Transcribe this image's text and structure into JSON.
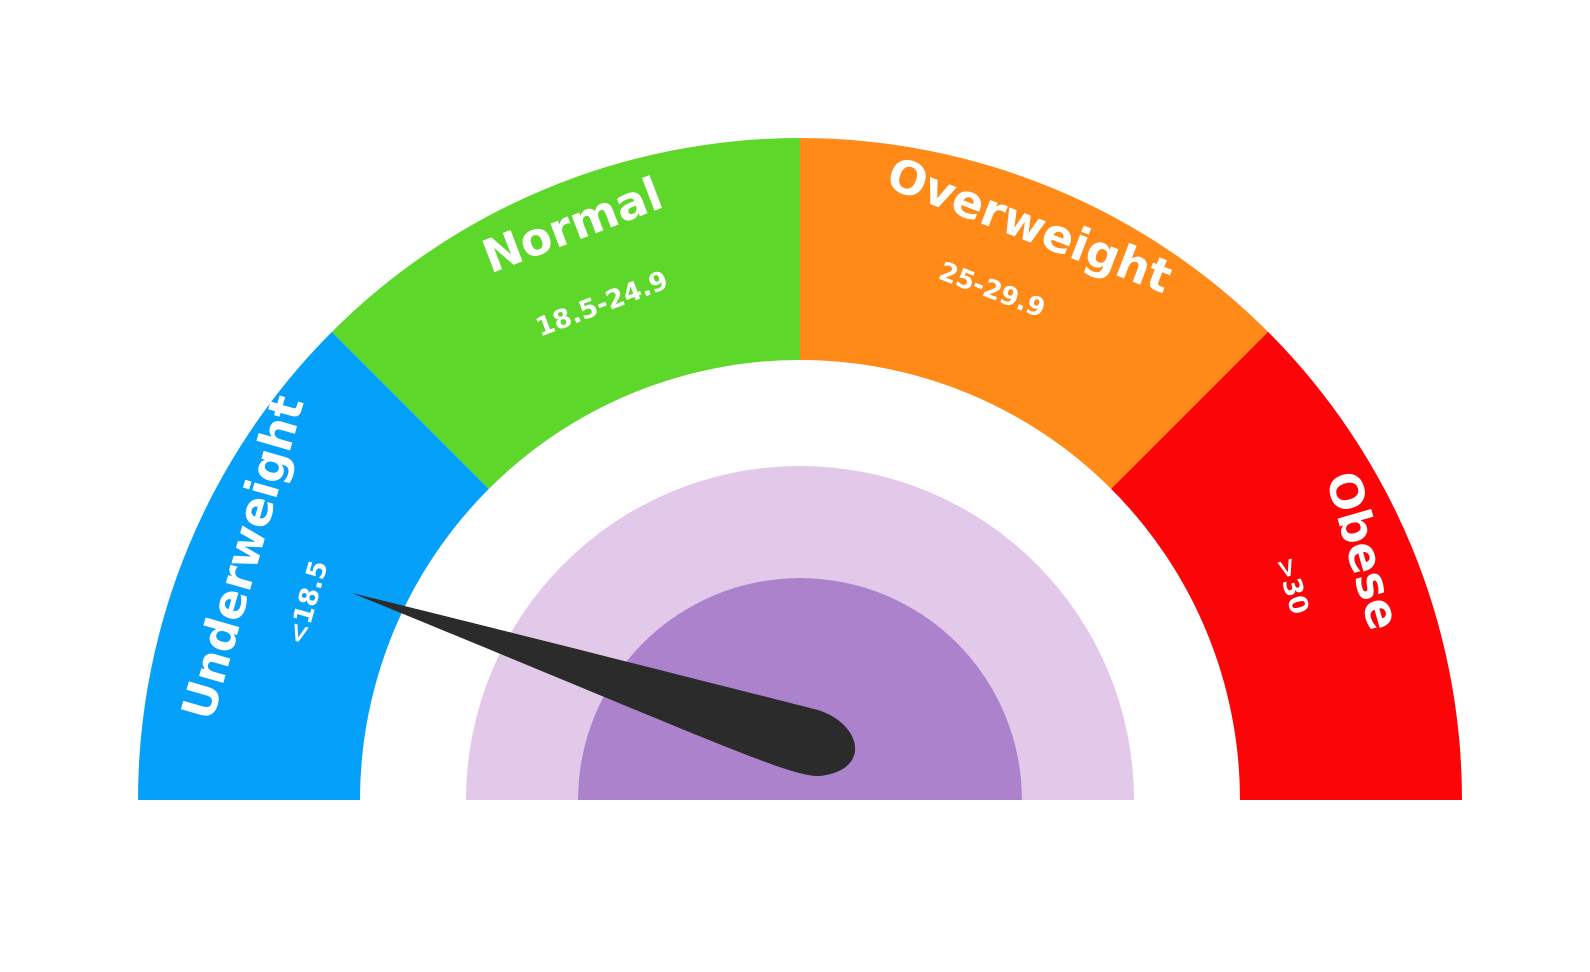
{
  "gauge": {
    "segments": [
      {
        "label": "Underweight",
        "range": "<18.5",
        "color": "#05a0fa"
      },
      {
        "label": "Normal",
        "range": "18.5-24.9",
        "color": "#5dd82a"
      },
      {
        "label": "Overweight",
        "range": "25-29.9",
        "color": "#ff8a18"
      },
      {
        "label": "Obese",
        "range": ">30",
        "color": "#fb0508"
      }
    ],
    "ring_outer_color": "#e2c9e9",
    "ring_inner_color": "#ad82cd",
    "needle_color": "#2b2b2b"
  }
}
